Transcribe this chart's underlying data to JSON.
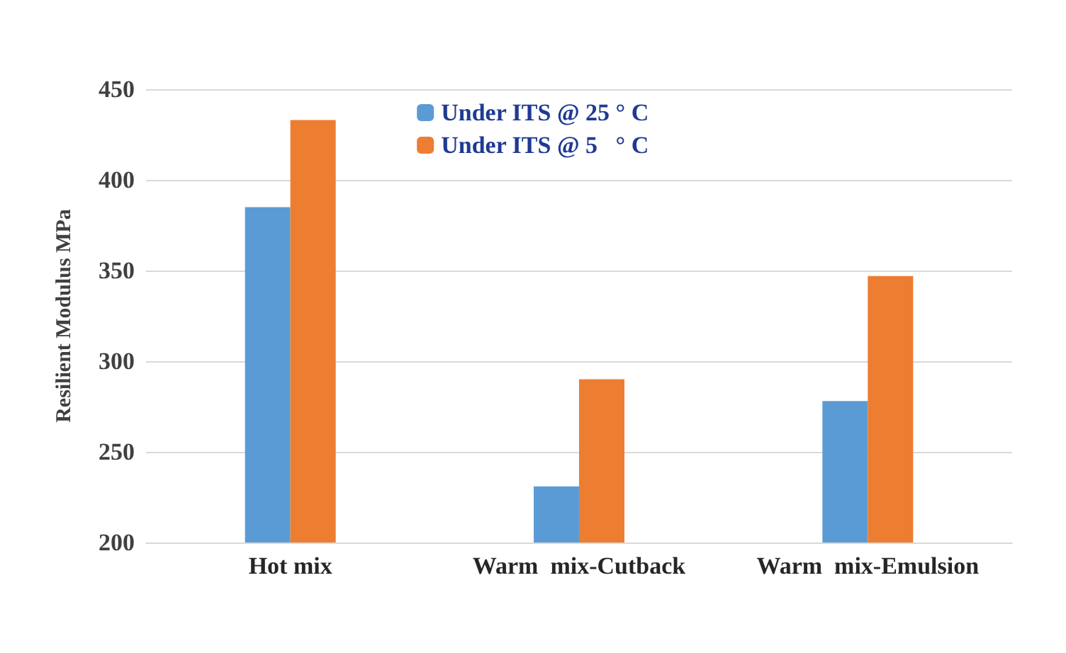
{
  "chart_data": {
    "type": "bar",
    "ylabel": "Resilient Modulus MPa",
    "categories": [
      "Hot mix",
      "Warm  mix-Cutback",
      "Warm  mix-Emulsion"
    ],
    "series": [
      {
        "name": "Under ITS @ 25 ° C",
        "color": "#5b9bd5",
        "values": [
          385,
          231,
          278
        ]
      },
      {
        "name": "Under ITS @ 5   ° C",
        "color": "#ed7d31",
        "values": [
          433,
          290,
          347
        ]
      }
    ],
    "ylim": [
      200,
      450
    ],
    "yticks": [
      200,
      250,
      300,
      350,
      400,
      450
    ],
    "grid": "y",
    "legend": "top"
  }
}
